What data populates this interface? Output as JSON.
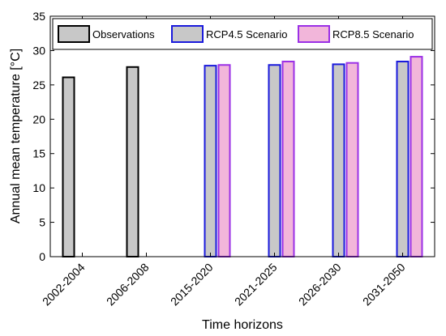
{
  "chart_data": {
    "type": "bar",
    "title": "",
    "xlabel": "Time horizons",
    "ylabel": "Annual mean temperature [°C]",
    "ylim": [
      0,
      35
    ],
    "yticks": [
      0,
      5,
      10,
      15,
      20,
      25,
      30,
      35
    ],
    "grid": false,
    "legend_position": "top",
    "categories": [
      "2002-2004",
      "2006-2008",
      "2015-2020",
      "2021-2025",
      "2026-2030",
      "2031-2050"
    ],
    "series": [
      {
        "name": "Observations",
        "values": [
          26.1,
          27.6,
          0,
          0,
          0,
          0
        ],
        "fill": "#c8c8c8",
        "stroke": "#000000"
      },
      {
        "name": "RCP4.5 Scenario",
        "values": [
          0,
          0,
          27.8,
          27.9,
          28.0,
          28.4
        ],
        "fill": "#c8c8c8",
        "stroke": "#1a1adc"
      },
      {
        "name": "RCP8.5 Scenario",
        "values": [
          0,
          0,
          27.9,
          28.4,
          28.2,
          29.1
        ],
        "fill": "#f2b6da",
        "stroke": "#9b30e6"
      }
    ]
  }
}
